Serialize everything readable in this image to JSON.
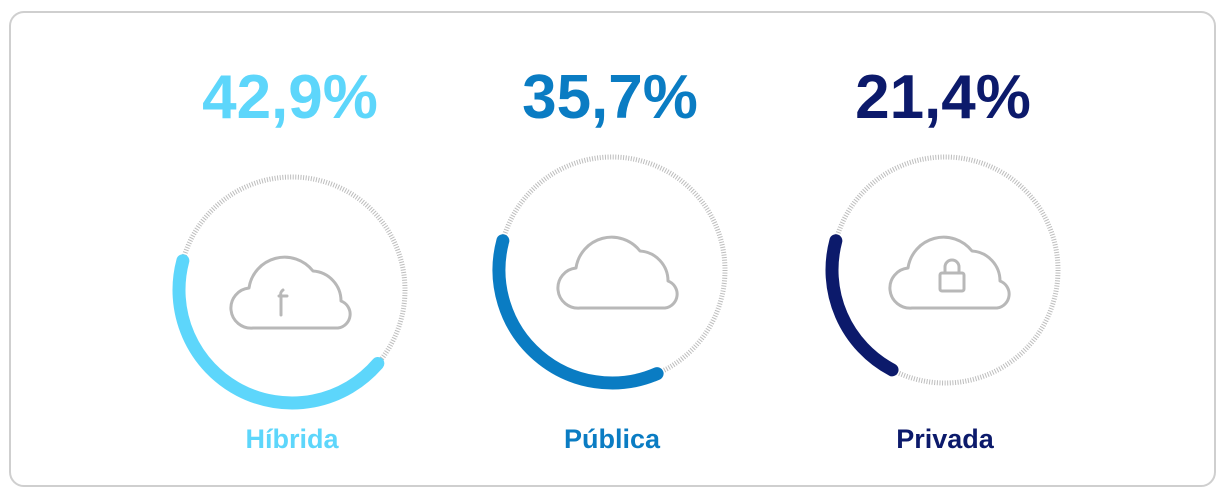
{
  "chart_data": {
    "type": "ring",
    "categories": [
      "Híbrida",
      "Pública",
      "Privada"
    ],
    "values": [
      42.9,
      35.7,
      21.4
    ],
    "value_labels": [
      "42,9%",
      "35,7%",
      "21,4%"
    ],
    "colors": [
      "#5dd6fb",
      "#0a7cc3",
      "#0c1a6b"
    ]
  }
}
